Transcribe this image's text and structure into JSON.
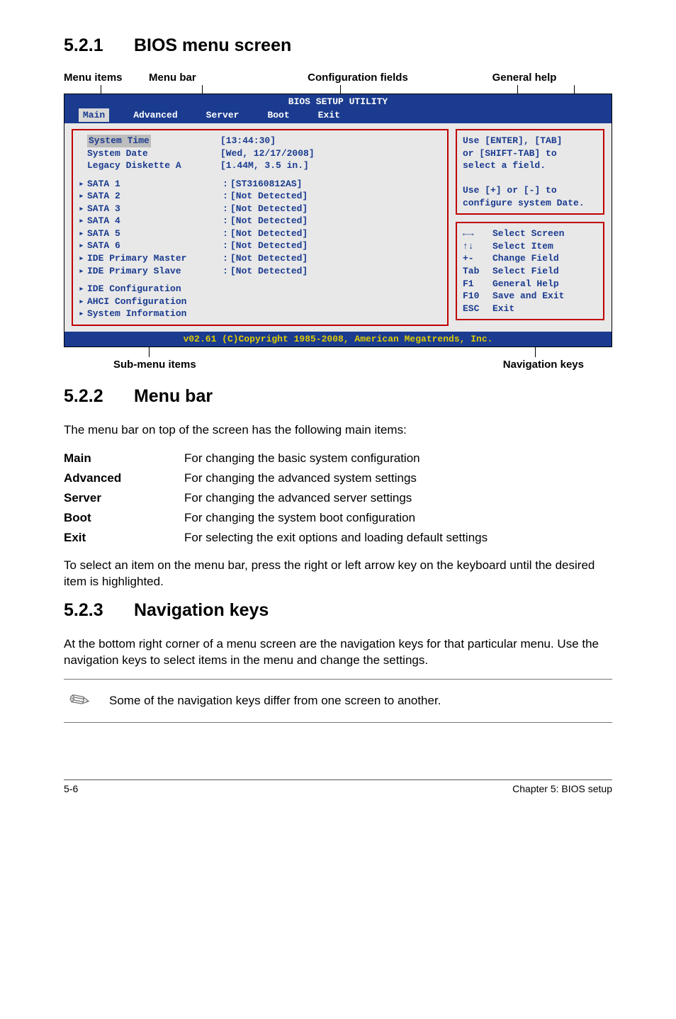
{
  "sections": {
    "s1": {
      "num": "5.2.1",
      "title": "BIOS menu screen"
    },
    "s2": {
      "num": "5.2.2",
      "title": "Menu bar"
    },
    "s3": {
      "num": "5.2.3",
      "title": "Navigation keys"
    }
  },
  "callouts_top": {
    "c1": "Menu items",
    "c2": "Menu bar",
    "c3": "Configuration fields",
    "c4": "General help"
  },
  "callouts_bottom": {
    "left": "Sub-menu items",
    "right": "Navigation keys"
  },
  "bios": {
    "title": "BIOS SETUP UTILITY",
    "tabs": [
      "Main",
      "Advanced",
      "Server",
      "Boot",
      "Exit"
    ],
    "active_tab": 0,
    "left_top": [
      {
        "label": "System Time",
        "highlight": true
      },
      {
        "label": "System Date"
      },
      {
        "label": "Legacy Diskette A"
      }
    ],
    "left_items": [
      {
        "label": "SATA 1",
        "colon": true
      },
      {
        "label": "SATA 2",
        "colon": true
      },
      {
        "label": "SATA 3",
        "colon": true
      },
      {
        "label": "SATA 4",
        "colon": true
      },
      {
        "label": "SATA 5",
        "colon": true
      },
      {
        "label": "SATA 6",
        "colon": true
      },
      {
        "label": "IDE Primary Master",
        "colon": true
      },
      {
        "label": "IDE Primary Slave",
        "colon": true
      }
    ],
    "left_bottom": [
      {
        "label": "IDE Configuration"
      },
      {
        "label": "AHCI Configuration"
      },
      {
        "label": "System Information"
      }
    ],
    "center_vals_top": [
      "[13:44:30]",
      "[Wed, 12/17/2008]",
      "[1.44M, 3.5 in.]"
    ],
    "center_vals": [
      "[ST3160812AS]",
      "[Not Detected]",
      "[Not Detected]",
      "[Not Detected]",
      "[Not Detected]",
      "[Not Detected]",
      "[Not Detected]",
      "[Not Detected]"
    ],
    "help_top": [
      "Use [ENTER], [TAB]",
      "or [SHIFT-TAB] to",
      "select a field.",
      "",
      "Use [+] or [-] to",
      "configure system Date."
    ],
    "nav_keys": [
      {
        "k": "←→",
        "v": "Select Screen"
      },
      {
        "k": "↑↓",
        "v": "Select Item"
      },
      {
        "k": "+-",
        "v": "Change Field"
      },
      {
        "k": "Tab",
        "v": "Select Field"
      },
      {
        "k": "F1",
        "v": "General Help"
      },
      {
        "k": "F10",
        "v": "Save and Exit"
      },
      {
        "k": "ESC",
        "v": "Exit"
      }
    ],
    "footer": "v02.61 (C)Copyright 1985-2008, American Megatrends, Inc.",
    "colors": {
      "header_bg": "#1a3b8f",
      "header_fg": "#ffffff",
      "body_bg": "#e8e8e8",
      "text_fg": "#1a3b8f",
      "footer_fg": "#e0cc00",
      "box_border": "#c00000"
    }
  },
  "menubar_intro": "The menu bar on top of the screen has the following main items:",
  "defs": [
    {
      "k": "Main",
      "v": "For changing the basic system configuration"
    },
    {
      "k": "Advanced",
      "v": "For changing the advanced system settings"
    },
    {
      "k": "Server",
      "v": "For changing the advanced server settings"
    },
    {
      "k": "Boot",
      "v": "For changing the system boot configuration"
    },
    {
      "k": "Exit",
      "v": "For selecting the exit options and loading default settings"
    }
  ],
  "menubar_outro": "To select an item on the menu bar, press the right or left arrow key on the keyboard until the desired item is highlighted.",
  "navkeys_para": "At the bottom right corner of a menu screen are the navigation keys for that particular menu. Use the navigation keys to select items in the menu and change the settings.",
  "note": "Some of the navigation keys differ from one screen to another.",
  "footer": {
    "left": "5-6",
    "right": "Chapter 5: BIOS setup"
  }
}
